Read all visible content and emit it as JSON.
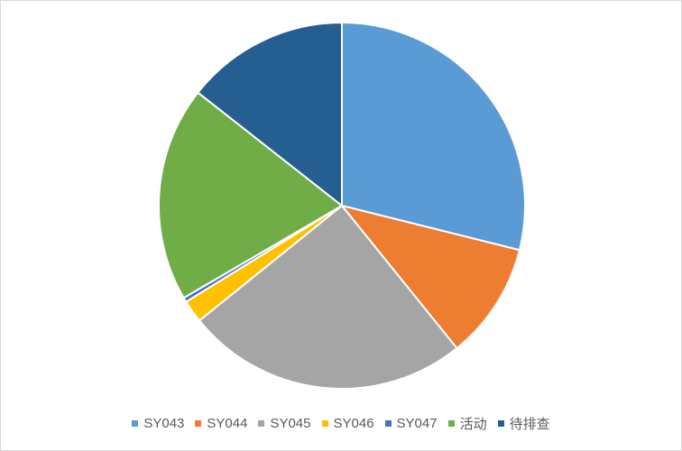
{
  "chart_data": {
    "type": "pie",
    "title": "",
    "categories": [
      "SY043",
      "SY044",
      "SY045",
      "SY046",
      "SY047",
      "活动",
      "待排查"
    ],
    "values": [
      28.9,
      10.3,
      25.0,
      2.0,
      0.4,
      19.0,
      14.4
    ],
    "colors": [
      "#5b9bd5",
      "#ed7d31",
      "#a5a5a5",
      "#ffc000",
      "#4472c4",
      "#70ad47",
      "#255e91"
    ],
    "start_angle_deg": 0,
    "direction": "clockwise",
    "legend": "bottom"
  }
}
